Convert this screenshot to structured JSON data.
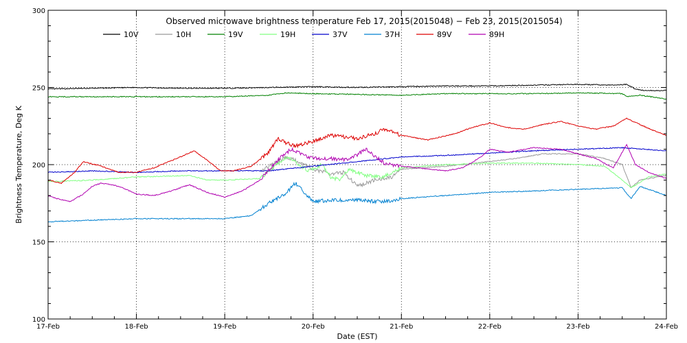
{
  "chart_data": {
    "type": "line",
    "title": "Observed microwave brightness temperature Feb 17, 2015(2015048) − Feb 23, 2015(2015054)",
    "xlabel": "Date (EST)",
    "ylabel": "Brightness Temperature, Deg K",
    "xlim": [
      0,
      7
    ],
    "ylim": [
      100,
      300
    ],
    "x_ticks": [
      {
        "x": 0,
        "label": "17-Feb"
      },
      {
        "x": 1,
        "label": "18-Feb"
      },
      {
        "x": 2,
        "label": "19-Feb"
      },
      {
        "x": 3,
        "label": "20-Feb"
      },
      {
        "x": 4,
        "label": "21-Feb"
      },
      {
        "x": 5,
        "label": "22-Feb"
      },
      {
        "x": 6,
        "label": "23-Feb"
      },
      {
        "x": 7,
        "label": "24-Feb"
      }
    ],
    "y_ticks": [
      100,
      150,
      200,
      250,
      300
    ],
    "grid": "dotted gridlines at each day and at 150, 200, 250",
    "legend_position": "top",
    "x_units": "days since 17-Feb 00:00 EST",
    "series": [
      {
        "name": "10V",
        "color": "#000000",
        "points": [
          [
            0,
            249
          ],
          [
            0.5,
            249.5
          ],
          [
            1,
            250
          ],
          [
            1.5,
            249.5
          ],
          [
            2,
            249.5
          ],
          [
            2.5,
            250
          ],
          [
            3,
            250.5
          ],
          [
            3.5,
            250
          ],
          [
            4,
            250.5
          ],
          [
            4.5,
            251
          ],
          [
            5,
            251
          ],
          [
            5.5,
            251.5
          ],
          [
            6,
            252
          ],
          [
            6.4,
            251.5
          ],
          [
            6.55,
            252
          ],
          [
            6.65,
            249
          ],
          [
            6.75,
            248
          ],
          [
            7,
            248
          ]
        ]
      },
      {
        "name": "10H",
        "color": "#999999",
        "points": [
          [
            2.4,
            196
          ],
          [
            2.7,
            205
          ],
          [
            2.95,
            199
          ],
          [
            3,
            197
          ],
          [
            3.2,
            194
          ],
          [
            3.35,
            195
          ],
          [
            3.5,
            186
          ],
          [
            3.7,
            190
          ],
          [
            3.9,
            192
          ],
          [
            4,
            197
          ],
          [
            4.5,
            199
          ],
          [
            5,
            202
          ],
          [
            5.3,
            204
          ],
          [
            5.6,
            207
          ],
          [
            6,
            207
          ],
          [
            6.3,
            204
          ],
          [
            6.5,
            200
          ],
          [
            6.6,
            185
          ],
          [
            6.7,
            190
          ],
          [
            7,
            193
          ]
        ]
      },
      {
        "name": "19V",
        "color": "#008000",
        "points": [
          [
            0,
            244
          ],
          [
            0.5,
            244
          ],
          [
            1,
            244
          ],
          [
            1.5,
            244
          ],
          [
            2,
            244
          ],
          [
            2.5,
            245
          ],
          [
            2.7,
            246.5
          ],
          [
            3,
            246
          ],
          [
            3.5,
            245.5
          ],
          [
            4,
            245
          ],
          [
            4.5,
            246
          ],
          [
            5,
            246
          ],
          [
            5.5,
            246
          ],
          [
            6,
            246.5
          ],
          [
            6.5,
            246
          ],
          [
            6.55,
            244
          ],
          [
            6.7,
            245
          ],
          [
            7,
            242.5
          ]
        ]
      },
      {
        "name": "19H",
        "color": "#80ff80",
        "points": [
          [
            0,
            189
          ],
          [
            0.5,
            190
          ],
          [
            1,
            192
          ],
          [
            1.6,
            193
          ],
          [
            1.8,
            190
          ],
          [
            2,
            190
          ],
          [
            2.4,
            191
          ],
          [
            2.7,
            205
          ],
          [
            2.95,
            196
          ],
          [
            3.1,
            200
          ],
          [
            3.2,
            192
          ],
          [
            3.3,
            190
          ],
          [
            3.4,
            197
          ],
          [
            3.6,
            193
          ],
          [
            3.8,
            192
          ],
          [
            4,
            198
          ],
          [
            4.5,
            200
          ],
          [
            5,
            201
          ],
          [
            5.5,
            201
          ],
          [
            6,
            200
          ],
          [
            6.3,
            199
          ],
          [
            6.5,
            190
          ],
          [
            6.6,
            185
          ],
          [
            6.8,
            192
          ],
          [
            7,
            194
          ]
        ]
      },
      {
        "name": "37V",
        "color": "#0000cc",
        "points": [
          [
            0,
            195
          ],
          [
            0.5,
            196
          ],
          [
            1,
            195
          ],
          [
            1.5,
            196
          ],
          [
            2,
            196
          ],
          [
            2.5,
            196
          ],
          [
            3,
            199
          ],
          [
            3.5,
            202
          ],
          [
            4,
            205
          ],
          [
            4.5,
            206
          ],
          [
            5,
            207.5
          ],
          [
            5.5,
            209
          ],
          [
            6,
            210
          ],
          [
            6.5,
            211
          ],
          [
            7,
            209
          ]
        ]
      },
      {
        "name": "37H",
        "color": "#0080d0",
        "points": [
          [
            0,
            163
          ],
          [
            0.5,
            164
          ],
          [
            1,
            165
          ],
          [
            1.5,
            165
          ],
          [
            2,
            165
          ],
          [
            2.3,
            167
          ],
          [
            2.5,
            175
          ],
          [
            2.7,
            182
          ],
          [
            2.8,
            188
          ],
          [
            3,
            176
          ],
          [
            3.2,
            177
          ],
          [
            3.5,
            177
          ],
          [
            3.8,
            176
          ],
          [
            4,
            178
          ],
          [
            4.5,
            180
          ],
          [
            5,
            182
          ],
          [
            5.5,
            183
          ],
          [
            6,
            184
          ],
          [
            6.5,
            185
          ],
          [
            6.6,
            178
          ],
          [
            6.7,
            186
          ],
          [
            7,
            180
          ]
        ]
      },
      {
        "name": "89V",
        "color": "#dd0000",
        "points": [
          [
            0,
            190
          ],
          [
            0.15,
            188
          ],
          [
            0.3,
            195
          ],
          [
            0.4,
            202
          ],
          [
            0.6,
            199
          ],
          [
            0.8,
            195
          ],
          [
            1,
            195
          ],
          [
            1.2,
            198
          ],
          [
            1.5,
            205
          ],
          [
            1.65,
            209
          ],
          [
            1.8,
            203
          ],
          [
            1.95,
            196
          ],
          [
            2.1,
            196
          ],
          [
            2.3,
            199
          ],
          [
            2.5,
            208
          ],
          [
            2.6,
            217
          ],
          [
            2.7,
            214
          ],
          [
            2.8,
            212
          ],
          [
            3,
            215
          ],
          [
            3.2,
            219
          ],
          [
            3.5,
            217
          ],
          [
            3.7,
            220
          ],
          [
            3.8,
            223
          ],
          [
            4,
            219
          ],
          [
            4.3,
            216
          ],
          [
            4.6,
            220
          ],
          [
            4.8,
            224
          ],
          [
            5,
            227
          ],
          [
            5.2,
            224
          ],
          [
            5.4,
            223
          ],
          [
            5.6,
            226
          ],
          [
            5.8,
            228
          ],
          [
            6,
            225
          ],
          [
            6.2,
            223
          ],
          [
            6.4,
            225
          ],
          [
            6.55,
            230
          ],
          [
            6.7,
            226
          ],
          [
            6.9,
            221
          ],
          [
            7,
            219
          ]
        ]
      },
      {
        "name": "89H",
        "color": "#b000b0",
        "points": [
          [
            0,
            180
          ],
          [
            0.1,
            178
          ],
          [
            0.25,
            176
          ],
          [
            0.4,
            181
          ],
          [
            0.5,
            186
          ],
          [
            0.6,
            188
          ],
          [
            0.8,
            186
          ],
          [
            1,
            181
          ],
          [
            1.2,
            180
          ],
          [
            1.4,
            183
          ],
          [
            1.6,
            187
          ],
          [
            1.8,
            182
          ],
          [
            2,
            179
          ],
          [
            2.2,
            183
          ],
          [
            2.4,
            190
          ],
          [
            2.6,
            203
          ],
          [
            2.75,
            210
          ],
          [
            2.9,
            206
          ],
          [
            3,
            204
          ],
          [
            3.2,
            204
          ],
          [
            3.4,
            203
          ],
          [
            3.6,
            210
          ],
          [
            3.8,
            201
          ],
          [
            4,
            199
          ],
          [
            4.5,
            196
          ],
          [
            4.7,
            198
          ],
          [
            4.9,
            205
          ],
          [
            5,
            210
          ],
          [
            5.2,
            208
          ],
          [
            5.5,
            211
          ],
          [
            5.8,
            210
          ],
          [
            6,
            207
          ],
          [
            6.2,
            204
          ],
          [
            6.4,
            198
          ],
          [
            6.55,
            213
          ],
          [
            6.65,
            200
          ],
          [
            6.8,
            195
          ],
          [
            7,
            191
          ]
        ]
      }
    ]
  }
}
